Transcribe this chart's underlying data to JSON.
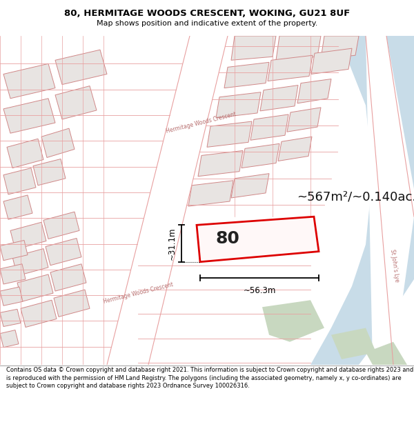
{
  "title_line1": "80, HERMITAGE WOODS CRESCENT, WOKING, GU21 8UF",
  "title_line2": "Map shows position and indicative extent of the property.",
  "area_text": "~567m²/~0.140ac.",
  "label_80": "80",
  "dim_width": "~56.3m",
  "dim_height": "~31.1m",
  "footer_text": "Contains OS data © Crown copyright and database right 2021. This information is subject to Crown copyright and database rights 2023 and is reproduced with the permission of HM Land Registry. The polygons (including the associated geometry, namely x, y co-ordinates) are subject to Crown copyright and database rights 2023 Ordnance Survey 100026316.",
  "bg_color": "#f9f7f6",
  "map_bg": "#f9f7f6",
  "plot_outline_color": "#dd0000",
  "road_line_color": "#e8a0a0",
  "block_fill": "#e8e4e2",
  "block_stroke": "#d08888",
  "water_color": "#c8dce8",
  "green_color": "#c8d8c0",
  "footer_bg": "#ffffff",
  "title_bg": "#ffffff"
}
